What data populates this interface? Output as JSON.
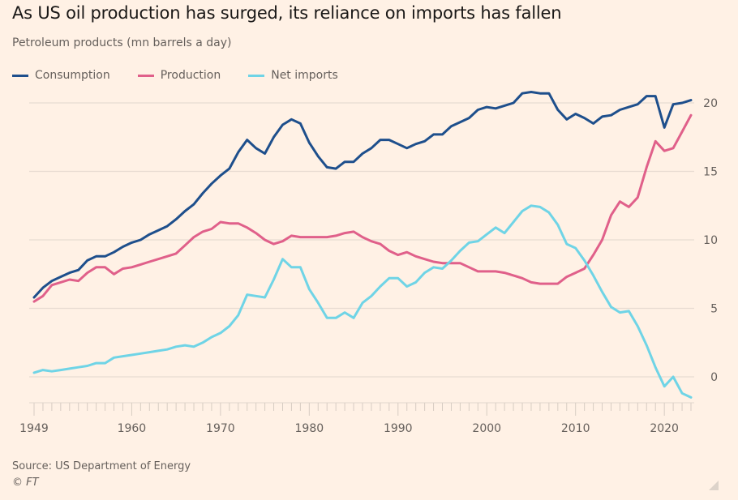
{
  "title": "As US oil production has surged, its reliance on imports has fallen",
  "subtitle": "Petroleum products (mn barrels a day)",
  "source": "Source: US Department of Energy",
  "copyright": "© FT",
  "colors": {
    "consumption": "#1e4f8c",
    "production": "#e0608a",
    "net_imports": "#6fd4e6",
    "grid": "#e8dcd2",
    "background": "#fff1e5"
  },
  "chart_data": {
    "type": "line",
    "title": "As US oil production has surged, its reliance on imports has fallen",
    "subtitle": "Petroleum products (mn barrels a day)",
    "xlabel": "",
    "ylabel": "",
    "xlim": [
      1949,
      2023
    ],
    "ylim": [
      -2,
      21
    ],
    "yticks": [
      0,
      5,
      10,
      15,
      20
    ],
    "xtick_labels": [
      "1949",
      "1960",
      "1970",
      "1980",
      "1990",
      "2000",
      "2010",
      "2020"
    ],
    "xticks": [
      1949,
      1960,
      1970,
      1980,
      1990,
      2000,
      2010,
      2020
    ],
    "grid": true,
    "legend_position": "top-left",
    "y_axis_side": "right",
    "x": [
      1949,
      1950,
      1951,
      1952,
      1953,
      1954,
      1955,
      1956,
      1957,
      1958,
      1959,
      1960,
      1961,
      1962,
      1963,
      1964,
      1965,
      1966,
      1967,
      1968,
      1969,
      1970,
      1971,
      1972,
      1973,
      1974,
      1975,
      1976,
      1977,
      1978,
      1979,
      1980,
      1981,
      1982,
      1983,
      1984,
      1985,
      1986,
      1987,
      1988,
      1989,
      1990,
      1991,
      1992,
      1993,
      1994,
      1995,
      1996,
      1997,
      1998,
      1999,
      2000,
      2001,
      2002,
      2003,
      2004,
      2005,
      2006,
      2007,
      2008,
      2009,
      2010,
      2011,
      2012,
      2013,
      2014,
      2015,
      2016,
      2017,
      2018,
      2019,
      2020,
      2021,
      2022,
      2023
    ],
    "series": [
      {
        "name": "Consumption",
        "color": "#1e4f8c",
        "values": [
          5.8,
          6.5,
          7.0,
          7.3,
          7.6,
          7.8,
          8.5,
          8.8,
          8.8,
          9.1,
          9.5,
          9.8,
          10.0,
          10.4,
          10.7,
          11.0,
          11.5,
          12.1,
          12.6,
          13.4,
          14.1,
          14.7,
          15.2,
          16.4,
          17.3,
          16.7,
          16.3,
          17.5,
          18.4,
          18.8,
          18.5,
          17.1,
          16.1,
          15.3,
          15.2,
          15.7,
          15.7,
          16.3,
          16.7,
          17.3,
          17.3,
          17.0,
          16.7,
          17.0,
          17.2,
          17.7,
          17.7,
          18.3,
          18.6,
          18.9,
          19.5,
          19.7,
          19.6,
          19.8,
          20.0,
          20.7,
          20.8,
          20.7,
          20.7,
          19.5,
          18.8,
          19.2,
          18.9,
          18.5,
          19.0,
          19.1,
          19.5,
          19.7,
          19.9,
          20.5,
          20.5,
          18.2,
          19.9,
          20.0,
          20.2
        ]
      },
      {
        "name": "Production",
        "color": "#e0608a",
        "values": [
          5.5,
          5.9,
          6.7,
          6.9,
          7.1,
          7.0,
          7.6,
          8.0,
          8.0,
          7.5,
          7.9,
          8.0,
          8.2,
          8.4,
          8.6,
          8.8,
          9.0,
          9.6,
          10.2,
          10.6,
          10.8,
          11.3,
          11.2,
          11.2,
          10.9,
          10.5,
          10.0,
          9.7,
          9.9,
          10.3,
          10.2,
          10.2,
          10.2,
          10.2,
          10.3,
          10.5,
          10.6,
          10.2,
          9.9,
          9.7,
          9.2,
          8.9,
          9.1,
          8.8,
          8.6,
          8.4,
          8.3,
          8.3,
          8.3,
          8.0,
          7.7,
          7.7,
          7.7,
          7.6,
          7.4,
          7.2,
          6.9,
          6.8,
          6.8,
          6.8,
          7.3,
          7.6,
          7.9,
          8.9,
          10.0,
          11.8,
          12.8,
          12.4,
          13.1,
          15.3,
          17.2,
          16.5,
          16.7,
          17.9,
          19.1
        ]
      },
      {
        "name": "Net imports",
        "color": "#6fd4e6",
        "values": [
          0.3,
          0.5,
          0.4,
          0.5,
          0.6,
          0.7,
          0.8,
          1.0,
          1.0,
          1.4,
          1.5,
          1.6,
          1.7,
          1.8,
          1.9,
          2.0,
          2.2,
          2.3,
          2.2,
          2.5,
          2.9,
          3.2,
          3.7,
          4.5,
          6.0,
          5.9,
          5.8,
          7.1,
          8.6,
          8.0,
          8.0,
          6.4,
          5.4,
          4.3,
          4.3,
          4.7,
          4.3,
          5.4,
          5.9,
          6.6,
          7.2,
          7.2,
          6.6,
          6.9,
          7.6,
          8.0,
          7.9,
          8.5,
          9.2,
          9.8,
          9.9,
          10.4,
          10.9,
          10.5,
          11.3,
          12.1,
          12.5,
          12.4,
          12.0,
          11.1,
          9.7,
          9.4,
          8.5,
          7.4,
          6.2,
          5.1,
          4.7,
          4.8,
          3.7,
          2.3,
          0.7,
          -0.7,
          0.0,
          -1.2,
          -1.5
        ]
      }
    ]
  },
  "legend": [
    {
      "label": "Consumption",
      "color": "#1e4f8c"
    },
    {
      "label": "Production",
      "color": "#e0608a"
    },
    {
      "label": "Net imports",
      "color": "#6fd4e6"
    }
  ]
}
